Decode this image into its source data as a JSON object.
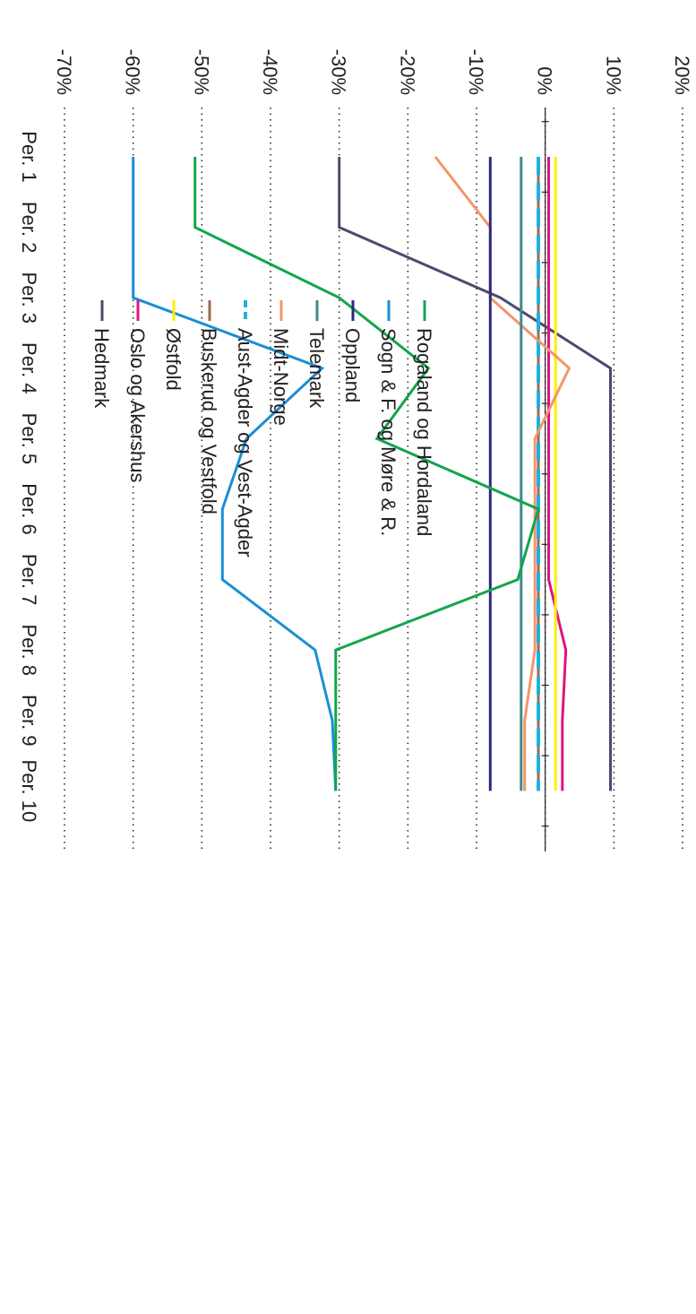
{
  "chart_data": {
    "type": "line",
    "title": "",
    "xlabel": "",
    "ylabel": "",
    "orientation": "rotated 90° clockwise (x axis runs top to bottom on the page, y axis left to right)",
    "categories": [
      "Per. 1",
      "Per. 2",
      "Per. 3",
      "Per. 4",
      "Per. 5",
      "Per. 6",
      "Per. 7",
      "Per. 8",
      "Per. 9",
      "Per. 10"
    ],
    "ylim": [
      -70,
      20
    ],
    "y_ticks": [
      20,
      10,
      0,
      -10,
      -20,
      -30,
      -40,
      -50,
      -60,
      -70
    ],
    "y_tick_labels": [
      "20%",
      "10%",
      "0%",
      "-10%",
      "-20%",
      "-30%",
      "-40%",
      "-50%",
      "-60%",
      "-70%"
    ],
    "grid": true,
    "legend_position": "right",
    "series": [
      {
        "name": "Hedmark",
        "color": "#4b4b6e",
        "dash": "solid",
        "values": [
          -30.0,
          -30.0,
          -6.5,
          9.5,
          null,
          null,
          null,
          null,
          null,
          9.5
        ]
      },
      {
        "name": "Oslo og Akershus",
        "color": "#e0137f",
        "dash": "solid",
        "values": [
          0.5,
          null,
          null,
          null,
          null,
          null,
          0.5,
          3.0,
          2.5,
          2.5
        ]
      },
      {
        "name": "Østfold",
        "color": "#ffee00",
        "dash": "solid",
        "values": [
          1.5,
          null,
          null,
          null,
          null,
          null,
          null,
          null,
          null,
          1.5
        ]
      },
      {
        "name": "Buskerud og Vestfold",
        "color": "#9b6b52",
        "dash": "solid",
        "values": [
          -1.0,
          null,
          null,
          null,
          null,
          null,
          null,
          null,
          null,
          -1.0
        ]
      },
      {
        "name": "Aust-Agder og Vest-Agder",
        "color": "#1eb1e0",
        "dash": "dashed",
        "values": [
          -1.0,
          null,
          null,
          null,
          null,
          null,
          null,
          null,
          null,
          -1.0
        ]
      },
      {
        "name": "Midt-Norge",
        "color": "#f4956b",
        "dash": "solid",
        "values": [
          -16.0,
          -8.0,
          -8.0,
          3.5,
          -1.5,
          -1.5,
          -1.5,
          -1.5,
          -3.0,
          -3.0
        ]
      },
      {
        "name": "Telemark",
        "color": "#3d8a8c",
        "dash": "solid",
        "values": [
          -3.5,
          null,
          null,
          null,
          null,
          null,
          null,
          null,
          null,
          -3.5
        ]
      },
      {
        "name": "Oppland",
        "color": "#2c2a7e",
        "dash": "solid",
        "values": [
          -8.0,
          null,
          null,
          null,
          null,
          null,
          null,
          null,
          null,
          -8.0
        ]
      },
      {
        "name": "Sogn & F. og Møre & R.",
        "color": "#1a8fd4",
        "dash": "solid",
        "values": [
          -60.0,
          null,
          -60.0,
          -32.5,
          -43.5,
          -47.0,
          -47.0,
          -33.5,
          -31.0,
          -30.5
        ]
      },
      {
        "name": "Rogaland og Hordaland",
        "color": "#12a54b",
        "dash": "solid",
        "values": [
          -51.0,
          -51.0,
          -30.0,
          -17.0,
          -24.5,
          -1.0,
          -4.0,
          -30.5,
          -30.5,
          -30.5
        ]
      }
    ]
  }
}
